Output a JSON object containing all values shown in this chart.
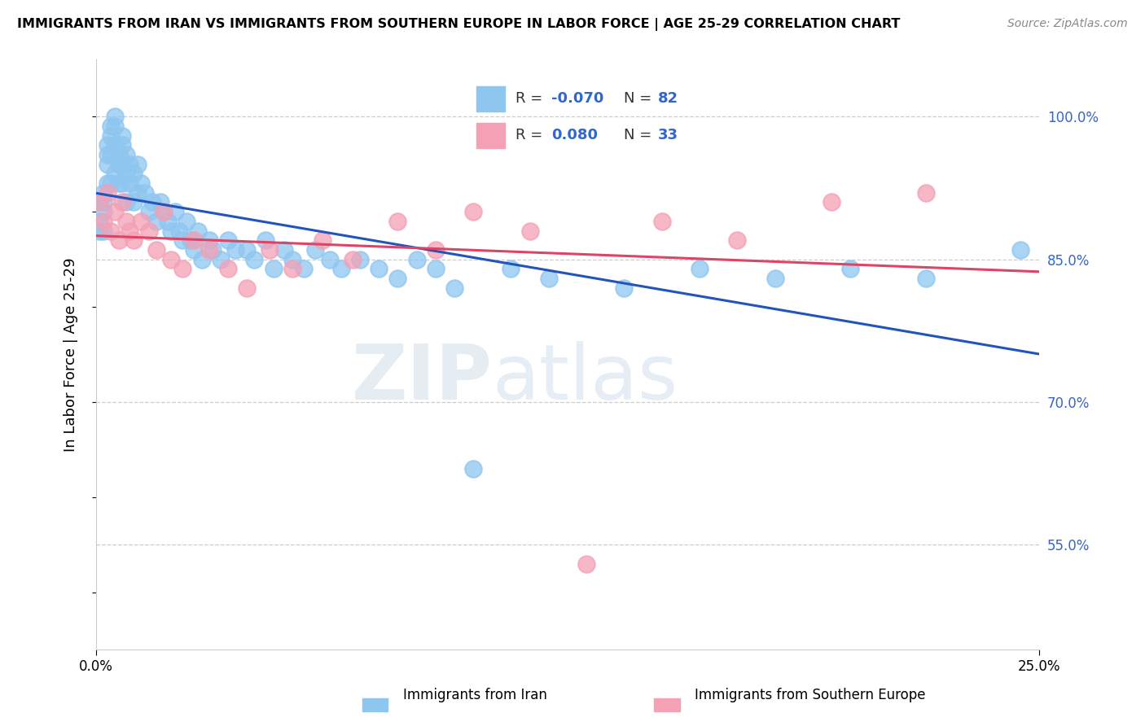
{
  "title": "IMMIGRANTS FROM IRAN VS IMMIGRANTS FROM SOUTHERN EUROPE IN LABOR FORCE | AGE 25-29 CORRELATION CHART",
  "source": "Source: ZipAtlas.com",
  "ylabel": "In Labor Force | Age 25-29",
  "right_yticks": [
    0.55,
    0.7,
    0.85,
    1.0
  ],
  "right_ytick_labels": [
    "55.0%",
    "70.0%",
    "85.0%",
    "100.0%"
  ],
  "xlim": [
    0.0,
    0.25
  ],
  "ylim": [
    0.44,
    1.06
  ],
  "legend_label_iran": "Immigrants from Iran",
  "legend_label_s_europe": "Immigrants from Southern Europe",
  "color_iran": "#8EC6F0",
  "color_s_europe": "#F4A0B5",
  "color_iran_line": "#2255BB",
  "color_s_europe_line": "#DD4466",
  "watermark_line1": "ZIP",
  "watermark_line2": "atlas",
  "iran_x": [
    0.001,
    0.001,
    0.001,
    0.002,
    0.002,
    0.002,
    0.002,
    0.003,
    0.003,
    0.003,
    0.003,
    0.004,
    0.004,
    0.004,
    0.004,
    0.005,
    0.005,
    0.005,
    0.005,
    0.006,
    0.006,
    0.006,
    0.007,
    0.007,
    0.007,
    0.007,
    0.008,
    0.008,
    0.008,
    0.009,
    0.009,
    0.01,
    0.01,
    0.011,
    0.011,
    0.012,
    0.013,
    0.014,
    0.015,
    0.016,
    0.017,
    0.018,
    0.019,
    0.02,
    0.021,
    0.022,
    0.023,
    0.024,
    0.025,
    0.026,
    0.027,
    0.028,
    0.03,
    0.031,
    0.033,
    0.035,
    0.037,
    0.04,
    0.042,
    0.045,
    0.047,
    0.05,
    0.052,
    0.055,
    0.058,
    0.062,
    0.065,
    0.07,
    0.075,
    0.08,
    0.085,
    0.09,
    0.095,
    0.1,
    0.11,
    0.12,
    0.14,
    0.16,
    0.18,
    0.2,
    0.22,
    0.245
  ],
  "iran_y": [
    0.91,
    0.89,
    0.88,
    0.92,
    0.91,
    0.9,
    0.88,
    0.97,
    0.96,
    0.95,
    0.93,
    0.99,
    0.98,
    0.96,
    0.93,
    1.0,
    0.99,
    0.97,
    0.94,
    0.96,
    0.95,
    0.93,
    0.98,
    0.97,
    0.95,
    0.93,
    0.96,
    0.94,
    0.91,
    0.95,
    0.93,
    0.94,
    0.91,
    0.95,
    0.92,
    0.93,
    0.92,
    0.9,
    0.91,
    0.89,
    0.91,
    0.9,
    0.89,
    0.88,
    0.9,
    0.88,
    0.87,
    0.89,
    0.87,
    0.86,
    0.88,
    0.85,
    0.87,
    0.86,
    0.85,
    0.87,
    0.86,
    0.86,
    0.85,
    0.87,
    0.84,
    0.86,
    0.85,
    0.84,
    0.86,
    0.85,
    0.84,
    0.85,
    0.84,
    0.83,
    0.85,
    0.84,
    0.82,
    0.63,
    0.84,
    0.83,
    0.82,
    0.84,
    0.83,
    0.84,
    0.83,
    0.86
  ],
  "s_europe_x": [
    0.001,
    0.002,
    0.003,
    0.004,
    0.005,
    0.006,
    0.007,
    0.008,
    0.009,
    0.01,
    0.012,
    0.014,
    0.016,
    0.018,
    0.02,
    0.023,
    0.026,
    0.03,
    0.035,
    0.04,
    0.046,
    0.052,
    0.06,
    0.068,
    0.08,
    0.09,
    0.1,
    0.115,
    0.13,
    0.15,
    0.17,
    0.195,
    0.22
  ],
  "s_europe_y": [
    0.91,
    0.89,
    0.92,
    0.88,
    0.9,
    0.87,
    0.91,
    0.89,
    0.88,
    0.87,
    0.89,
    0.88,
    0.86,
    0.9,
    0.85,
    0.84,
    0.87,
    0.86,
    0.84,
    0.82,
    0.86,
    0.84,
    0.87,
    0.85,
    0.89,
    0.86,
    0.9,
    0.88,
    0.53,
    0.89,
    0.87,
    0.91,
    0.92
  ]
}
